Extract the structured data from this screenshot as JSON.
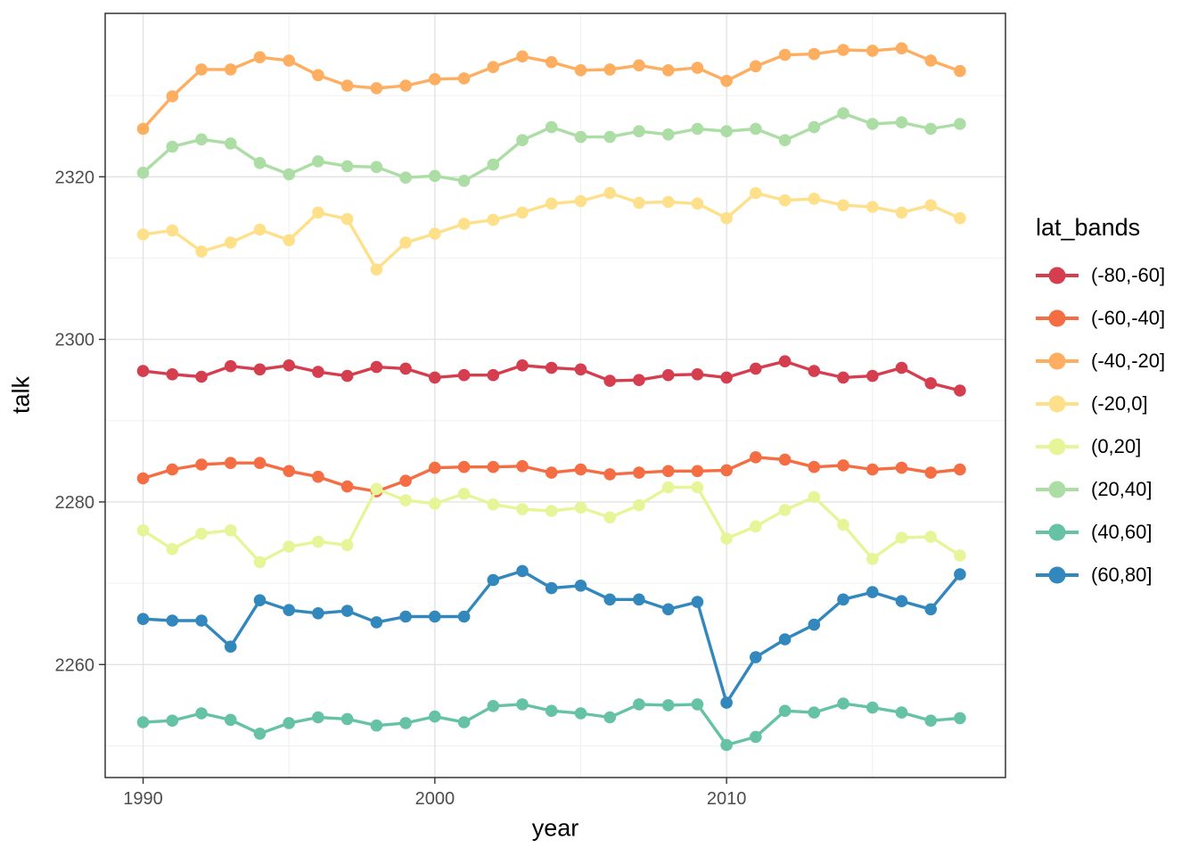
{
  "figure": {
    "background": "#ffffff"
  },
  "chart_data": {
    "type": "line",
    "title": "",
    "xlabel": "year",
    "ylabel": "talk",
    "legend_title": "lat_bands",
    "legend_position": "right",
    "grid": true,
    "x": [
      1990,
      1991,
      1992,
      1993,
      1994,
      1995,
      1996,
      1997,
      1998,
      1999,
      2000,
      2001,
      2002,
      2003,
      2004,
      2005,
      2006,
      2007,
      2008,
      2009,
      2010,
      2011,
      2012,
      2013,
      2014,
      2015,
      2016,
      2017,
      2018
    ],
    "xlim": [
      1988.7,
      2019.56
    ],
    "ylim": [
      2246.1,
      2340.1
    ],
    "x_major_ticks": [
      1990,
      2000,
      2010
    ],
    "x_minor_ticks": [
      1995,
      2005,
      2015
    ],
    "y_major_ticks": [
      2260,
      2280,
      2300,
      2320
    ],
    "y_minor_ticks": [
      2250,
      2270,
      2290,
      2310,
      2330
    ],
    "series": [
      {
        "name": "(-80,-60]",
        "color": "#d53e4f",
        "values": [
          2296.1,
          2295.7,
          2295.4,
          2296.7,
          2296.3,
          2296.8,
          2296.0,
          2295.5,
          2296.6,
          2296.4,
          2295.3,
          2295.6,
          2295.6,
          2296.8,
          2296.5,
          2296.3,
          2294.9,
          2295.0,
          2295.6,
          2295.7,
          2295.3,
          2296.4,
          2297.3,
          2296.1,
          2295.3,
          2295.5,
          2296.5,
          2294.6,
          2293.7
        ]
      },
      {
        "name": "(-60,-40]",
        "color": "#f46d43",
        "values": [
          2282.9,
          2284.0,
          2284.6,
          2284.8,
          2284.8,
          2283.8,
          2283.1,
          2281.9,
          2281.3,
          2282.6,
          2284.2,
          2284.3,
          2284.3,
          2284.4,
          2283.6,
          2284.0,
          2283.4,
          2283.6,
          2283.8,
          2283.8,
          2283.9,
          2285.5,
          2285.2,
          2284.3,
          2284.5,
          2284.0,
          2284.2,
          2283.6,
          2284.0
        ]
      },
      {
        "name": "(-40,-20]",
        "color": "#fdae61",
        "values": [
          2325.9,
          2329.9,
          2333.2,
          2333.2,
          2334.7,
          2334.3,
          2332.5,
          2331.2,
          2330.9,
          2331.2,
          2332.0,
          2332.1,
          2333.5,
          2334.8,
          2334.1,
          2333.1,
          2333.2,
          2333.7,
          2333.1,
          2333.4,
          2331.8,
          2333.6,
          2335.0,
          2335.1,
          2335.6,
          2335.5,
          2335.8,
          2334.3,
          2333.0
        ]
      },
      {
        "name": "(-20,0]",
        "color": "#fee08b",
        "values": [
          2312.9,
          2313.4,
          2310.8,
          2311.9,
          2313.5,
          2312.2,
          2315.6,
          2314.8,
          2308.6,
          2311.9,
          2313.0,
          2314.2,
          2314.7,
          2315.6,
          2316.7,
          2317.0,
          2318.0,
          2316.8,
          2316.9,
          2316.7,
          2314.9,
          2318.0,
          2317.1,
          2317.3,
          2316.5,
          2316.3,
          2315.6,
          2316.5,
          2314.9
        ]
      },
      {
        "name": "(0,20]",
        "color": "#e6f598",
        "values": [
          2276.5,
          2274.2,
          2276.1,
          2276.5,
          2272.6,
          2274.5,
          2275.1,
          2274.7,
          2281.6,
          2280.2,
          2279.8,
          2281.0,
          2279.7,
          2279.1,
          2278.9,
          2279.3,
          2278.1,
          2279.6,
          2281.8,
          2281.8,
          2275.5,
          2277.0,
          2279.0,
          2280.6,
          2277.2,
          2273.0,
          2275.6,
          2275.7,
          2273.4
        ]
      },
      {
        "name": "(20,40]",
        "color": "#abdda4",
        "values": [
          2320.5,
          2323.7,
          2324.6,
          2324.1,
          2321.7,
          2320.3,
          2321.9,
          2321.3,
          2321.2,
          2319.9,
          2320.1,
          2319.5,
          2321.5,
          2324.5,
          2326.1,
          2324.9,
          2324.9,
          2325.6,
          2325.2,
          2325.9,
          2325.6,
          2325.9,
          2324.5,
          2326.1,
          2327.8,
          2326.5,
          2326.7,
          2325.9,
          2326.5
        ]
      },
      {
        "name": "(40,60]",
        "color": "#66c2a5",
        "values": [
          2252.9,
          2253.1,
          2254.0,
          2253.2,
          2251.5,
          2252.8,
          2253.5,
          2253.3,
          2252.5,
          2252.8,
          2253.6,
          2252.9,
          2254.9,
          2255.1,
          2254.3,
          2254.0,
          2253.5,
          2255.1,
          2255.0,
          2255.1,
          2250.1,
          2251.1,
          2254.3,
          2254.1,
          2255.2,
          2254.7,
          2254.1,
          2253.1,
          2253.4
        ]
      },
      {
        "name": "(60,80]",
        "color": "#3288bd",
        "values": [
          2265.6,
          2265.4,
          2265.4,
          2262.2,
          2267.9,
          2266.7,
          2266.3,
          2266.6,
          2265.2,
          2265.9,
          2265.9,
          2265.9,
          2270.4,
          2271.5,
          2269.4,
          2269.7,
          2268.0,
          2268.0,
          2266.8,
          2267.7,
          2255.3,
          2260.9,
          2263.1,
          2264.9,
          2268.0,
          2268.9,
          2267.8,
          2266.8,
          2271.1
        ]
      }
    ],
    "style": {
      "panel_background": "#ffffff",
      "panel_border_color": "#333333",
      "grid_major_color": "#e3e3e3",
      "grid_minor_color": "#f0f0f0",
      "tick_mark_color": "#333333",
      "tick_label_color": "#4d4d4d",
      "title_color": "#000000"
    }
  }
}
